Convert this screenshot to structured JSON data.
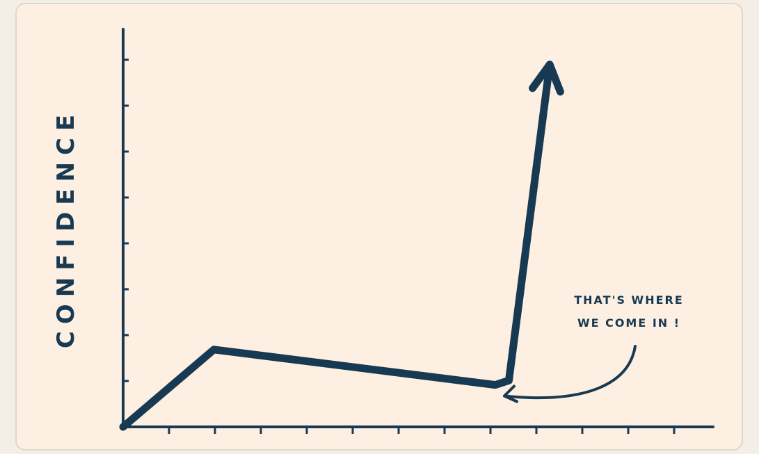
{
  "chart_data": {
    "type": "line",
    "title": "",
    "xlabel": "",
    "ylabel": "CONFIDENCE",
    "x": [
      0,
      2,
      8.2,
      8.5,
      9.4
    ],
    "series": [
      {
        "values": [
          0,
          1.75,
          0.95,
          1.05,
          8.2
        ]
      }
    ],
    "xlim": [
      0,
      13
    ],
    "ylim": [
      0,
      9
    ],
    "x_ticks": 12,
    "y_ticks": 8,
    "grid": false,
    "arrow_at_end": true,
    "annotation": {
      "lines": [
        "THAT'S WHERE",
        "WE COME IN !"
      ],
      "points_to_x": 8.4,
      "points_to_y": 0.7
    },
    "colors": {
      "line": "#173a52",
      "background": "#fdefe2"
    }
  }
}
